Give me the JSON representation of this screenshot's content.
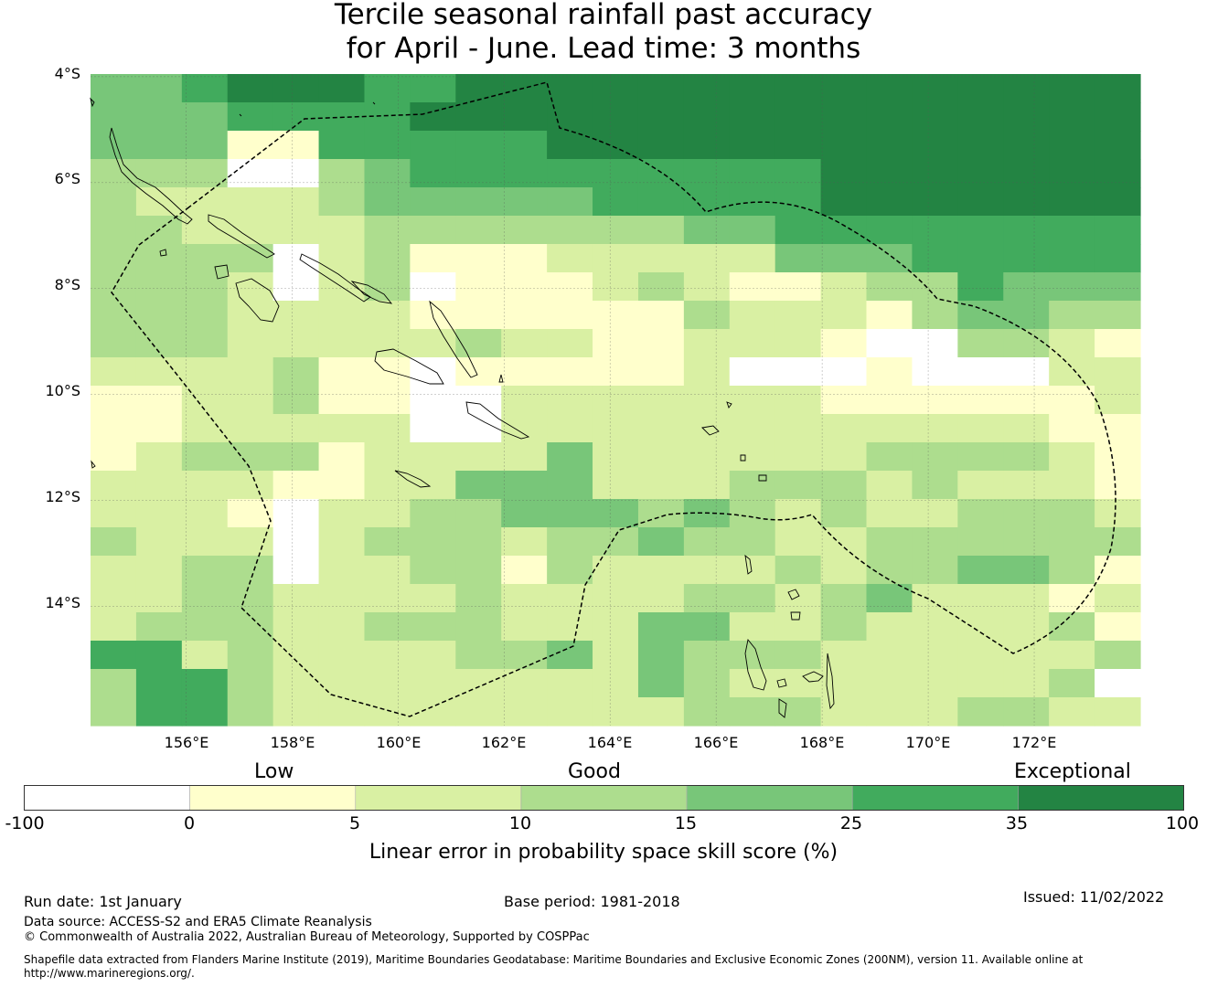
{
  "title": {
    "line1": "Tercile seasonal rainfall past accuracy",
    "line2": "for April - June. Lead time: 3 months"
  },
  "axes": {
    "lat_labels": [
      "4°S",
      "6°S",
      "8°S",
      "10°S",
      "12°S",
      "14°S"
    ],
    "lon_labels": [
      "156°E",
      "158°E",
      "160°E",
      "162°E",
      "164°E",
      "166°E",
      "168°E",
      "170°E",
      "172°E"
    ],
    "lon_range": [
      154.2,
      174.0
    ],
    "lat_range": [
      -16.25,
      -3.95
    ]
  },
  "legend": {
    "categories": [
      "Low",
      "Good",
      "Exceptional"
    ],
    "ticks": [
      "-100",
      "0",
      "5",
      "10",
      "15",
      "25",
      "35",
      "100"
    ],
    "colors": [
      "#ffffff",
      "#ffffcc",
      "#d9f0a3",
      "#addd8e",
      "#78c679",
      "#41ab5d",
      "#238443"
    ],
    "unit_label": "Linear error in probability space skill score (%)"
  },
  "footer": {
    "run_date": "Run date: 1st January",
    "base_period": "Base period: 1981-2018",
    "issued": "Issued: 11/02/2022",
    "data_source": "Data source: ACCESS-S2 and ERA5 Climate Reanalysis",
    "copyright": "© Commonwealth of Australia 2022, Australian Bureau of Meteorology, Supported by COSPPac",
    "shapefile1": "Shapefile data extracted from Flanders Marine Institute (2019), Maritime Boundaries Geodatabase: Maritime Boundaries and Exclusive Economic Zones (200NM), version 11. Available online at",
    "shapefile2": "http://www.marineregions.org/."
  },
  "grid_data": {
    "description_legend": "skill category 0=<0,1=0-5,2=5-10,3=10-15,4=15-25,5=25-35,6=35-100",
    "rows": [
      "44566655666666666666666",
      "44455556666666666666666",
      "44411555556666666666666",
      "33300345555555556666666",
      "32222344444555556666666",
      "33222233333334455555555",
      "33330231112222244455555",
      "33320230111232112335444",
      "33322221111113222134433",
      "33322222322112221003321",
      "22223110111112000100022",
      "11223110022222221111112",
      "11222220022222222222211",
      "12333122224222222333321",
      "22221122444222333232221",
      "22210223344434323223332",
      "32220233323343322333333",
      "22330223313222232334431",
      "22332222322223323422212",
      "23332233322244223222231",
      "55232222334243332222223",
      "35532222222243222222230",
      "35532222222223332223322"
    ]
  }
}
